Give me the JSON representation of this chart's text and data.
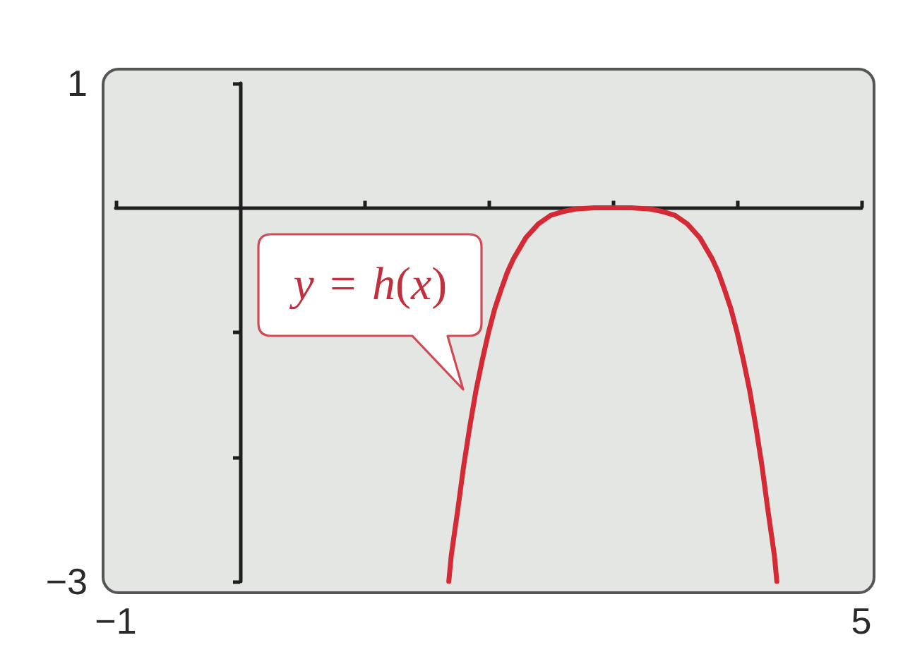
{
  "chart_data": {
    "type": "line",
    "color": "#d42a35",
    "line_style": "solid",
    "x": [
      1.68,
      1.7,
      1.75,
      1.8,
      1.85,
      1.9,
      1.95,
      2.0,
      2.05,
      2.1,
      2.15,
      2.2,
      2.3,
      2.4,
      2.5,
      2.6,
      2.7,
      2.85,
      3.0,
      3.15,
      3.3,
      3.4,
      3.5,
      3.6,
      3.7,
      3.8,
      3.85,
      3.9,
      3.95,
      4.0,
      4.05,
      4.1,
      4.15,
      4.2,
      4.25,
      4.3,
      4.32
    ],
    "values": [
      -3.0,
      -2.79,
      -2.44,
      -2.07,
      -1.75,
      -1.46,
      -1.22,
      -1.0,
      -0.81,
      -0.66,
      -0.52,
      -0.41,
      -0.24,
      -0.13,
      -0.06,
      -0.03,
      -0.01,
      0,
      0,
      0,
      -0.01,
      -0.03,
      -0.06,
      -0.13,
      -0.24,
      -0.41,
      -0.52,
      -0.66,
      -0.81,
      -1.0,
      -1.22,
      -1.46,
      -1.75,
      -2.07,
      -2.44,
      -2.79,
      -3.0
    ],
    "xlim": [
      -1,
      5
    ],
    "xticks": [
      {
        "value": -1,
        "label": "−1"
      },
      {
        "value": 1,
        "label": null
      },
      {
        "value": 2,
        "label": null
      },
      {
        "value": 3,
        "label": null
      },
      {
        "value": 4,
        "label": null
      },
      {
        "value": 5,
        "label": "5"
      }
    ],
    "ylim": [
      -3,
      1
    ],
    "yticks": [
      {
        "value": -3,
        "label": "−3"
      },
      {
        "value": -2,
        "label": null
      },
      {
        "value": -1,
        "label": null
      },
      {
        "value": 1,
        "label": "1"
      }
    ],
    "annotations": [
      {
        "text": "y = h(x)",
        "x": 1.9,
        "y": -1.46
      }
    ]
  }
}
